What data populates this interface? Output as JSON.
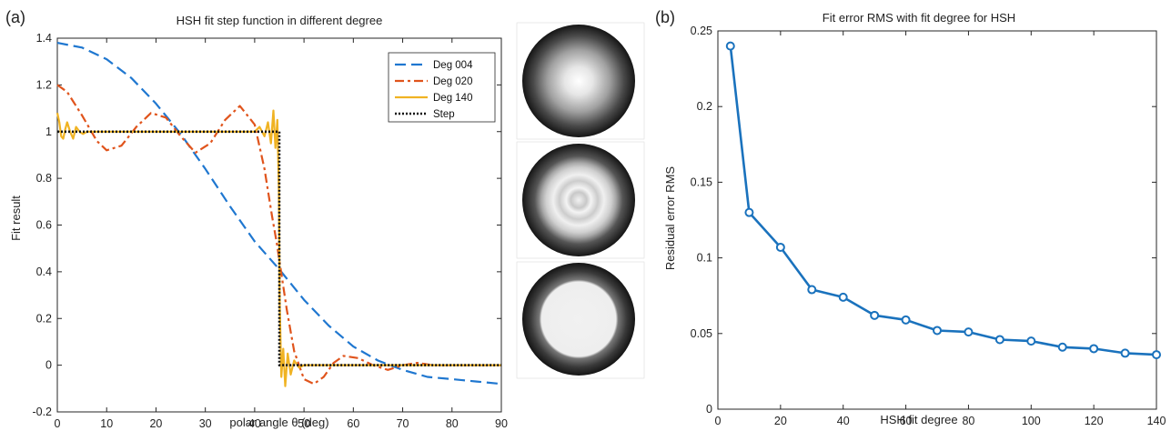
{
  "panels": {
    "a": "(a)",
    "b": "(b)"
  },
  "chart_data": [
    {
      "type": "line",
      "title": "HSH fit step function in different degree",
      "xlabel": "polar angle θ (deg)",
      "ylabel": "Fit result",
      "xlim": [
        0,
        90
      ],
      "ylim": [
        -0.2,
        1.4
      ],
      "xticks": [
        0,
        10,
        20,
        30,
        40,
        50,
        60,
        70,
        80,
        90
      ],
      "yticks": [
        -0.2,
        0,
        0.2,
        0.4,
        0.6,
        0.8,
        1,
        1.2,
        1.4
      ],
      "xtick_labels": [
        "0",
        "10",
        "20",
        "30",
        "40",
        "50",
        "60",
        "70",
        "80",
        "90"
      ],
      "ytick_labels": [
        "-0.2",
        "0",
        "0.2",
        "0.4",
        "0.6",
        "0.8",
        "1",
        "1.2",
        "1.4"
      ],
      "grid": false,
      "legend": "top-right",
      "series": [
        {
          "name": "Deg 004",
          "color": "#1f77d0",
          "style": "dashed",
          "x": [
            0,
            5,
            10,
            15,
            20,
            25,
            30,
            35,
            40,
            45,
            50,
            55,
            60,
            65,
            70,
            75,
            80,
            85,
            90
          ],
          "y": [
            1.38,
            1.36,
            1.31,
            1.23,
            1.12,
            0.99,
            0.84,
            0.68,
            0.53,
            0.41,
            0.28,
            0.17,
            0.08,
            0.02,
            -0.02,
            -0.05,
            -0.06,
            -0.07,
            -0.08
          ]
        },
        {
          "name": "Deg 020",
          "color": "#e0541c",
          "style": "dashdot",
          "x": [
            0,
            2,
            5,
            8,
            10,
            13,
            16,
            19,
            22,
            25,
            28,
            31,
            34,
            37,
            40,
            42,
            43.5,
            44.5,
            45,
            45.5,
            46.5,
            48,
            50,
            52,
            54,
            56,
            58,
            61,
            64,
            67,
            70,
            73,
            76,
            79,
            82,
            85,
            88,
            90
          ],
          "y": [
            1.2,
            1.17,
            1.07,
            0.96,
            0.92,
            0.94,
            1.02,
            1.08,
            1.06,
            0.98,
            0.91,
            0.95,
            1.05,
            1.11,
            1.03,
            0.84,
            0.64,
            0.52,
            0.45,
            0.38,
            0.24,
            0.06,
            -0.06,
            -0.08,
            -0.05,
            0.01,
            0.04,
            0.03,
            0.0,
            -0.02,
            0.0,
            0.01,
            0.0,
            0.0,
            0.0,
            0.0,
            0.0,
            0.0
          ]
        },
        {
          "name": "Deg 140",
          "color": "#f0b323",
          "style": "solid",
          "x": [
            0,
            0.4,
            0.8,
            1.2,
            1.6,
            2.0,
            2.6,
            3.2,
            3.8,
            4.5,
            5.2,
            6,
            8,
            10,
            14,
            18,
            22,
            26,
            30,
            34,
            38,
            40,
            41,
            42,
            42.7,
            43.3,
            43.8,
            44.2,
            44.6,
            44.9,
            45.1,
            45.4,
            45.8,
            46.2,
            46.7,
            47.3,
            48,
            49,
            50,
            52,
            55,
            60,
            65,
            70,
            75,
            80,
            85,
            90
          ],
          "y": [
            1.08,
            1.04,
            0.98,
            0.97,
            1.01,
            1.04,
            1.0,
            0.97,
            1.02,
            1.0,
            0.99,
            1.0,
            1.0,
            1.0,
            1.0,
            1.0,
            1.0,
            1.0,
            1.0,
            1.0,
            1.0,
            1.0,
            1.02,
            0.98,
            1.04,
            0.95,
            1.09,
            0.93,
            1.05,
            0.75,
            0.25,
            -0.05,
            0.07,
            -0.09,
            0.05,
            -0.04,
            0.02,
            -0.01,
            0.0,
            0.0,
            0.0,
            0.0,
            0.0,
            0.0,
            0.0,
            0.0,
            0.0,
            0.0
          ]
        },
        {
          "name": "Step",
          "color": "#111111",
          "style": "dotted",
          "x": [
            0,
            45,
            45,
            90
          ],
          "y": [
            1,
            1,
            0,
            0
          ]
        }
      ]
    },
    {
      "type": "line",
      "title": "Fit error RMS with fit degree for HSH",
      "xlabel": "HSH fit degree",
      "ylabel": "Residual error RMS",
      "xlim": [
        0,
        140
      ],
      "ylim": [
        0,
        0.25
      ],
      "xticks": [
        0,
        20,
        40,
        60,
        80,
        100,
        120,
        140
      ],
      "yticks": [
        0,
        0.05,
        0.1,
        0.15,
        0.2,
        0.25
      ],
      "xtick_labels": [
        "0",
        "20",
        "40",
        "60",
        "80",
        "100",
        "120",
        "140"
      ],
      "ytick_labels": [
        "0",
        "0.05",
        "0.1",
        "0.15",
        "0.2",
        "0.25"
      ],
      "grid": false,
      "color": "#1a72bd",
      "marker": "circle",
      "x": [
        4,
        10,
        20,
        30,
        40,
        50,
        60,
        70,
        80,
        90,
        100,
        110,
        120,
        130,
        140
      ],
      "y": [
        0.24,
        0.13,
        0.107,
        0.079,
        0.074,
        0.062,
        0.059,
        0.052,
        0.051,
        0.046,
        0.045,
        0.041,
        0.04,
        0.037,
        0.036
      ]
    }
  ],
  "insets": {
    "count": 3,
    "descriptions": [
      "Deg 004 surface map",
      "Deg 020 surface map",
      "Deg 140 surface map"
    ]
  }
}
